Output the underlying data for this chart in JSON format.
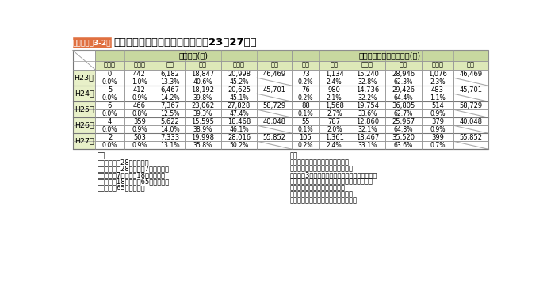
{
  "title": "熱中症による救急搬送状況（平成23～27年）",
  "title_tag": "トピックス3-2表",
  "header1": [
    "年齢区分(人)",
    "初診時における傷病程度(人)"
  ],
  "header2": [
    "新生児",
    "乳幼児",
    "少年",
    "成人",
    "高齢者",
    "合計",
    "死亡",
    "重症",
    "中等症",
    "軽症",
    "その他",
    "合計"
  ],
  "years": [
    "H23年",
    "H24年",
    "H25年",
    "H26年",
    "H27年"
  ],
  "data_values": [
    [
      "0",
      "442",
      "6,182",
      "18,847",
      "20,998",
      "46,469",
      "73",
      "1,134",
      "15,240",
      "28,946",
      "1,076",
      "46,469"
    ],
    [
      "0.0%",
      "1.0%",
      "13.3%",
      "40.6%",
      "45.2%",
      "",
      "0.2%",
      "2.4%",
      "32.8%",
      "62.3%",
      "2.3%",
      ""
    ],
    [
      "5",
      "412",
      "6,467",
      "18,192",
      "20,625",
      "45,701",
      "76",
      "980",
      "14,736",
      "29,426",
      "483",
      "45,701"
    ],
    [
      "0.0%",
      "0.9%",
      "14.2%",
      "39.8%",
      "45.1%",
      "",
      "0.2%",
      "2.1%",
      "32.2%",
      "64.4%",
      "1.1%",
      ""
    ],
    [
      "6",
      "466",
      "7,367",
      "23,062",
      "27,828",
      "58,729",
      "88",
      "1,568",
      "19,754",
      "36,805",
      "514",
      "58,729"
    ],
    [
      "0.0%",
      "0.8%",
      "12.5%",
      "39.3%",
      "47.4%",
      "",
      "0.1%",
      "2.7%",
      "33.6%",
      "62.7%",
      "0.9%",
      ""
    ],
    [
      "4",
      "359",
      "5,622",
      "15,595",
      "18,468",
      "40,048",
      "55",
      "787",
      "12,860",
      "25,967",
      "379",
      "40,048"
    ],
    [
      "0.0%",
      "0.9%",
      "14.0%",
      "38.9%",
      "46.1%",
      "",
      "0.1%",
      "2.0%",
      "32.1%",
      "64.8%",
      "0.9%",
      ""
    ],
    [
      "2",
      "503",
      "7,333",
      "19,998",
      "28,016",
      "55,852",
      "105",
      "1,361",
      "18,467",
      "35,520",
      "399",
      "55,852"
    ],
    [
      "0.0%",
      "0.9%",
      "13.1%",
      "35.8%",
      "50.2%",
      "",
      "0.2%",
      "2.4%",
      "33.1%",
      "63.6%",
      "0.7%",
      ""
    ]
  ],
  "legend_left": [
    "凡例",
    "新生児：生後28日未満の者",
    "乳幼児：生後28日以上満7歳未満の者",
    "少　年：満7歳以上満18歳未満の者",
    "成　人：満18歳以上満65歳未満の者",
    "高齢者：満65歳以上の者"
  ],
  "legend_right": [
    "凡例",
    "軽　症：入院を必要としないもの",
    "中等症：重症または軽症以外のもの",
    "重　症：3週間の入院加療を必要とするもの以上",
    "死　亡：医師の初診時に死亡が確認されたもの",
    "その他：医師の診断がないもの",
    "　　　　傷病程度が判明しないもの",
    "　　　　その他の場所に搬送したもの"
  ],
  "color_header_top": "#c8d8a0",
  "color_header_row": "#dde8b8",
  "color_year_label": "#e8f0c8",
  "color_tag_bg": "#e07040",
  "color_tag_text": "#ffffff",
  "color_white": "#ffffff",
  "color_line": "#999999"
}
